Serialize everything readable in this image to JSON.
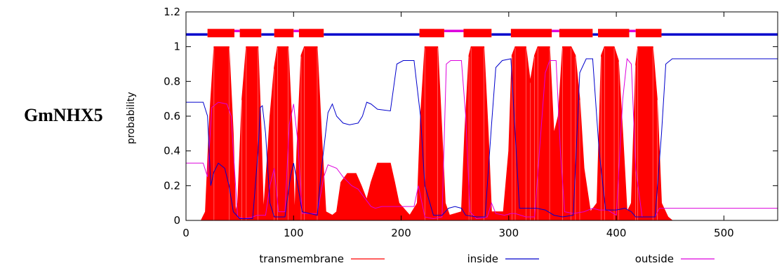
{
  "figure_label": "GmNHX5",
  "colors": {
    "transmembrane": "#ff0000",
    "inside": "#0000cc",
    "outside": "#dd00dd",
    "background": "#ffffff"
  },
  "chart_data": {
    "type": "area",
    "title": "",
    "xlabel": "",
    "ylabel": "probability",
    "xlim": [
      0,
      550
    ],
    "ylim": [
      0,
      1.2
    ],
    "xticks": [
      0,
      100,
      200,
      300,
      400,
      500
    ],
    "yticks": [
      0,
      0.2,
      0.4,
      0.6,
      0.8,
      1,
      1.2
    ],
    "legend_position": "bottom",
    "legend": [
      {
        "key": "transmembrane",
        "label": "transmembrane"
      },
      {
        "key": "inside",
        "label": "inside"
      },
      {
        "key": "outside",
        "label": "outside"
      }
    ],
    "topology": {
      "y": 1.07,
      "inside_segments": [
        [
          0,
          20
        ],
        [
          70,
          82
        ],
        [
          128,
          217
        ],
        [
          284,
          302
        ],
        [
          378,
          383
        ],
        [
          442,
          550
        ]
      ],
      "outside_segments": [
        [
          45,
          50
        ],
        [
          100,
          105
        ],
        [
          240,
          258
        ],
        [
          340,
          347
        ],
        [
          412,
          418
        ]
      ],
      "tm_segments": [
        [
          20,
          45
        ],
        [
          50,
          70
        ],
        [
          82,
          100
        ],
        [
          105,
          128
        ],
        [
          217,
          240
        ],
        [
          258,
          284
        ],
        [
          302,
          340
        ],
        [
          347,
          378
        ],
        [
          383,
          412
        ],
        [
          418,
          442
        ]
      ]
    },
    "series": [
      {
        "name": "transmembrane",
        "type": "area",
        "points": [
          [
            0,
            0
          ],
          [
            14,
            0
          ],
          [
            18,
            0.05
          ],
          [
            22,
            0.6
          ],
          [
            26,
            1
          ],
          [
            40,
            1
          ],
          [
            44,
            0.5
          ],
          [
            46,
            0.05
          ],
          [
            48,
            0.1
          ],
          [
            52,
            0.7
          ],
          [
            56,
            1
          ],
          [
            67,
            1
          ],
          [
            70,
            0.5
          ],
          [
            72,
            0.05
          ],
          [
            76,
            0.4
          ],
          [
            78,
            0.6
          ],
          [
            82,
            0.88
          ],
          [
            85,
            1
          ],
          [
            95,
            1
          ],
          [
            99,
            0.5
          ],
          [
            101,
            0.02
          ],
          [
            103,
            0.4
          ],
          [
            107,
            0.95
          ],
          [
            110,
            1
          ],
          [
            122,
            1
          ],
          [
            126,
            0.5
          ],
          [
            130,
            0.05
          ],
          [
            136,
            0.03
          ],
          [
            140,
            0.05
          ],
          [
            144,
            0.22
          ],
          [
            150,
            0.27
          ],
          [
            158,
            0.27
          ],
          [
            163,
            0.2
          ],
          [
            168,
            0.12
          ],
          [
            172,
            0.22
          ],
          [
            178,
            0.33
          ],
          [
            190,
            0.33
          ],
          [
            194,
            0.22
          ],
          [
            198,
            0.1
          ],
          [
            208,
            0.03
          ],
          [
            215,
            0.1
          ],
          [
            218,
            0.6
          ],
          [
            222,
            1
          ],
          [
            234,
            1
          ],
          [
            238,
            0.5
          ],
          [
            241,
            0.1
          ],
          [
            245,
            0.03
          ],
          [
            256,
            0.05
          ],
          [
            259,
            0.5
          ],
          [
            263,
            0.95
          ],
          [
            265,
            1
          ],
          [
            277,
            1
          ],
          [
            281,
            0.5
          ],
          [
            284,
            0.05
          ],
          [
            295,
            0.05
          ],
          [
            300,
            0.4
          ],
          [
            303,
            0.95
          ],
          [
            306,
            1
          ],
          [
            316,
            1
          ],
          [
            320,
            0.8
          ],
          [
            324,
            0.95
          ],
          [
            327,
            1
          ],
          [
            338,
            1
          ],
          [
            342,
            0.5
          ],
          [
            346,
            0.6
          ],
          [
            350,
            1
          ],
          [
            358,
            1
          ],
          [
            362,
            0.95
          ],
          [
            366,
            0.7
          ],
          [
            370,
            0.3
          ],
          [
            376,
            0.05
          ],
          [
            382,
            0.1
          ],
          [
            386,
            0.95
          ],
          [
            389,
            1
          ],
          [
            398,
            1
          ],
          [
            402,
            0.92
          ],
          [
            406,
            0.5
          ],
          [
            410,
            0.05
          ],
          [
            414,
            0.1
          ],
          [
            418,
            0.9
          ],
          [
            420,
            1
          ],
          [
            434,
            1
          ],
          [
            438,
            0.7
          ],
          [
            442,
            0.1
          ],
          [
            448,
            0.02
          ],
          [
            452,
            0
          ],
          [
            550,
            0
          ]
        ]
      },
      {
        "name": "inside",
        "type": "line",
        "points": [
          [
            0,
            0.68
          ],
          [
            16,
            0.68
          ],
          [
            20,
            0.6
          ],
          [
            23,
            0.2
          ],
          [
            26,
            0.28
          ],
          [
            30,
            0.33
          ],
          [
            36,
            0.3
          ],
          [
            40,
            0.2
          ],
          [
            44,
            0.05
          ],
          [
            50,
            0.01
          ],
          [
            62,
            0.01
          ],
          [
            67,
            0.4
          ],
          [
            69,
            0.65
          ],
          [
            71,
            0.66
          ],
          [
            74,
            0.5
          ],
          [
            78,
            0.1
          ],
          [
            82,
            0.02
          ],
          [
            92,
            0.02
          ],
          [
            97,
            0.25
          ],
          [
            100,
            0.33
          ],
          [
            104,
            0.2
          ],
          [
            108,
            0.05
          ],
          [
            122,
            0.03
          ],
          [
            126,
            0.3
          ],
          [
            132,
            0.62
          ],
          [
            136,
            0.67
          ],
          [
            140,
            0.6
          ],
          [
            146,
            0.56
          ],
          [
            152,
            0.55
          ],
          [
            160,
            0.56
          ],
          [
            164,
            0.6
          ],
          [
            168,
            0.68
          ],
          [
            172,
            0.67
          ],
          [
            178,
            0.64
          ],
          [
            190,
            0.63
          ],
          [
            196,
            0.9
          ],
          [
            202,
            0.92
          ],
          [
            212,
            0.92
          ],
          [
            218,
            0.6
          ],
          [
            222,
            0.2
          ],
          [
            230,
            0.03
          ],
          [
            238,
            0.03
          ],
          [
            244,
            0.07
          ],
          [
            250,
            0.08
          ],
          [
            256,
            0.07
          ],
          [
            260,
            0.03
          ],
          [
            270,
            0.02
          ],
          [
            278,
            0.02
          ],
          [
            284,
            0.55
          ],
          [
            288,
            0.88
          ],
          [
            294,
            0.92
          ],
          [
            302,
            0.93
          ],
          [
            306,
            0.5
          ],
          [
            310,
            0.07
          ],
          [
            326,
            0.07
          ],
          [
            334,
            0.06
          ],
          [
            342,
            0.03
          ],
          [
            350,
            0.02
          ],
          [
            360,
            0.03
          ],
          [
            366,
            0.85
          ],
          [
            372,
            0.93
          ],
          [
            378,
            0.93
          ],
          [
            384,
            0.4
          ],
          [
            390,
            0.06
          ],
          [
            400,
            0.06
          ],
          [
            408,
            0.07
          ],
          [
            414,
            0.05
          ],
          [
            418,
            0.02
          ],
          [
            436,
            0.02
          ],
          [
            442,
            0.5
          ],
          [
            446,
            0.9
          ],
          [
            452,
            0.93
          ],
          [
            550,
            0.93
          ]
        ]
      },
      {
        "name": "outside",
        "type": "line",
        "points": [
          [
            0,
            0.33
          ],
          [
            16,
            0.33
          ],
          [
            20,
            0.25
          ],
          [
            24,
            0.65
          ],
          [
            30,
            0.68
          ],
          [
            38,
            0.67
          ],
          [
            42,
            0.6
          ],
          [
            44,
            0.4
          ],
          [
            48,
            0.02
          ],
          [
            54,
            0.01
          ],
          [
            62,
            0.02
          ],
          [
            66,
            0.03
          ],
          [
            74,
            0.03
          ],
          [
            78,
            0.2
          ],
          [
            82,
            0.3
          ],
          [
            86,
            0.05
          ],
          [
            92,
            0.05
          ],
          [
            96,
            0.55
          ],
          [
            100,
            0.67
          ],
          [
            104,
            0.45
          ],
          [
            108,
            0.04
          ],
          [
            122,
            0.04
          ],
          [
            128,
            0.25
          ],
          [
            132,
            0.32
          ],
          [
            140,
            0.3
          ],
          [
            146,
            0.25
          ],
          [
            154,
            0.2
          ],
          [
            160,
            0.18
          ],
          [
            166,
            0.13
          ],
          [
            172,
            0.08
          ],
          [
            176,
            0.07
          ],
          [
            182,
            0.08
          ],
          [
            192,
            0.08
          ],
          [
            198,
            0.08
          ],
          [
            205,
            0.08
          ],
          [
            212,
            0.08
          ],
          [
            216,
            0.2
          ],
          [
            222,
            0.02
          ],
          [
            230,
            0.01
          ],
          [
            238,
            0.02
          ],
          [
            242,
            0.9
          ],
          [
            246,
            0.92
          ],
          [
            256,
            0.92
          ],
          [
            260,
            0.6
          ],
          [
            264,
            0.05
          ],
          [
            270,
            0.01
          ],
          [
            280,
            0.02
          ],
          [
            284,
            0.1
          ],
          [
            288,
            0.04
          ],
          [
            296,
            0.03
          ],
          [
            302,
            0.04
          ],
          [
            306,
            0.04
          ],
          [
            316,
            0.02
          ],
          [
            324,
            0.02
          ],
          [
            334,
            0.85
          ],
          [
            338,
            0.92
          ],
          [
            344,
            0.92
          ],
          [
            348,
            0.4
          ],
          [
            352,
            0.05
          ],
          [
            360,
            0.04
          ],
          [
            370,
            0.05
          ],
          [
            378,
            0.07
          ],
          [
            384,
            0.06
          ],
          [
            392,
            0.06
          ],
          [
            400,
            0.03
          ],
          [
            406,
            0.7
          ],
          [
            410,
            0.93
          ],
          [
            414,
            0.9
          ],
          [
            418,
            0.3
          ],
          [
            424,
            0.02
          ],
          [
            436,
            0.02
          ],
          [
            440,
            0.07
          ],
          [
            444,
            0.07
          ],
          [
            550,
            0.07
          ]
        ]
      }
    ]
  }
}
